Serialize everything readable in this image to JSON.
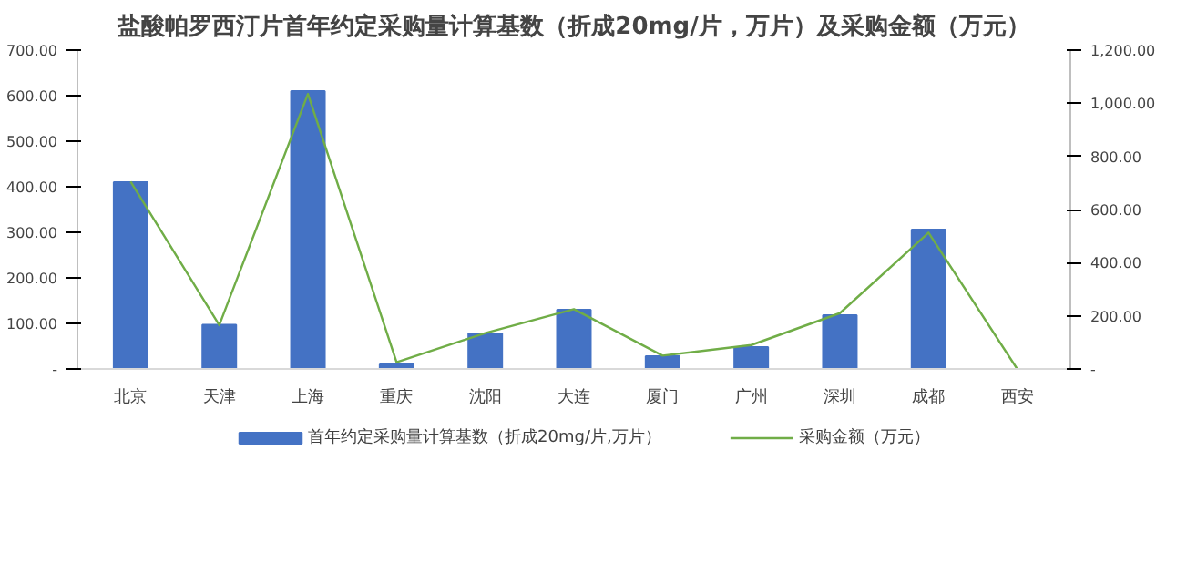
{
  "chart_data": {
    "type": "bar",
    "title": "盐酸帕罗西汀片首年约定采购量计算基数（折成20mg/片，万片）及采购金额（万元）",
    "categories": [
      "北京",
      "天津",
      "上海",
      "重庆",
      "沈阳",
      "大连",
      "厦门",
      "广州",
      "深圳",
      "成都",
      "西安"
    ],
    "series": [
      {
        "name": "首年约定采购量计算基数（折成20mg/片,万片）",
        "color": "#4472c4",
        "values": [
          410,
          97,
          610,
          10,
          78,
          130,
          28,
          48,
          118,
          306,
          0
        ]
      },
      {
        "name": "采购金额（万元）",
        "type": "line",
        "axis": "y2",
        "color": "#70ad47",
        "values": [
          705,
          165,
          1035,
          25,
          135,
          225,
          50,
          90,
          210,
          513,
          0
        ]
      }
    ],
    "ylim": [
      0,
      700
    ],
    "yticks": [
      {
        "value": 0,
        "label": "-"
      },
      {
        "value": 100,
        "label": "100.00"
      },
      {
        "value": 200,
        "label": "200.00"
      },
      {
        "value": 300,
        "label": "300.00"
      },
      {
        "value": 400,
        "label": "400.00"
      },
      {
        "value": 500,
        "label": "500.00"
      },
      {
        "value": 600,
        "label": "600.00"
      },
      {
        "value": 700,
        "label": "700.00"
      }
    ],
    "y2lim": [
      0,
      1200
    ],
    "y2ticks": [
      {
        "value": 0,
        "label": "-"
      },
      {
        "value": 200,
        "label": "200.00"
      },
      {
        "value": 400,
        "label": "400.00"
      },
      {
        "value": 600,
        "label": "600.00"
      },
      {
        "value": 800,
        "label": "800.00"
      },
      {
        "value": 1000,
        "label": "1,000.00"
      },
      {
        "value": 1200,
        "label": "1,200.00"
      }
    ],
    "grid": false,
    "legend": "bottom"
  }
}
